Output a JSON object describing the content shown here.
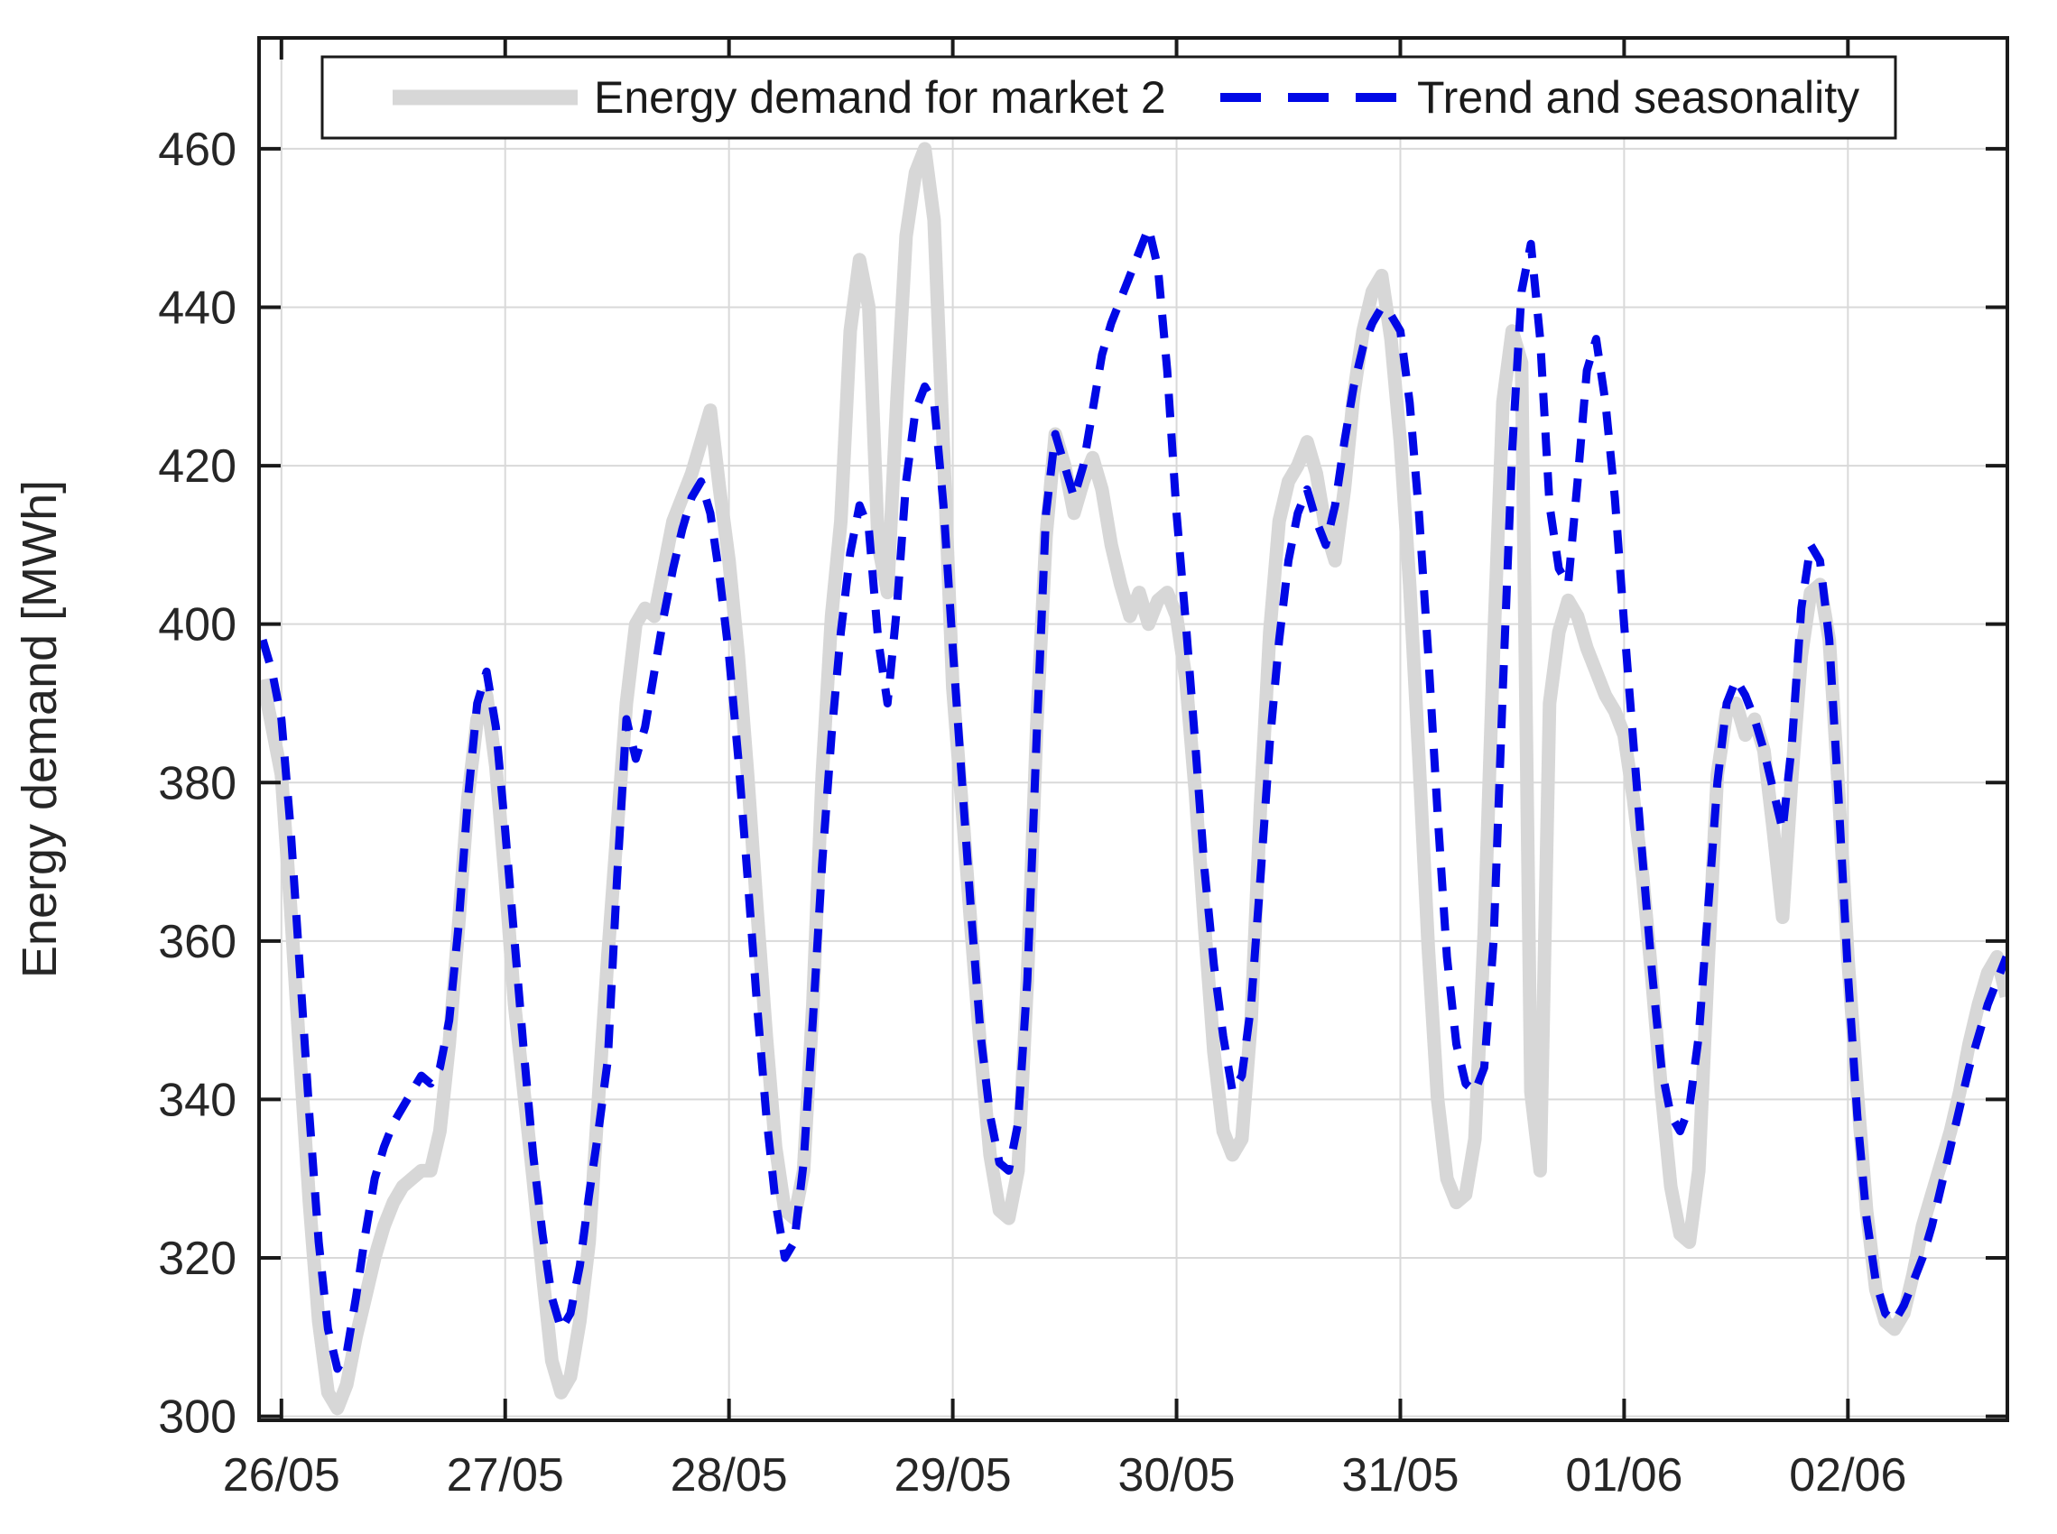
{
  "figure": {
    "background": "#ffffff"
  },
  "axes": {
    "ylabel": "Energy demand [MWh]",
    "xlabel": "",
    "frame_color": "#1a1a1a",
    "grid_color": "#d9d9d9",
    "tick_label_color": "#262626"
  },
  "legend": {
    "entries": [
      {
        "label": "Energy demand for market 2",
        "color": "#d7d7d7",
        "style": "solid"
      },
      {
        "label": "Trend and seasonality",
        "color": "#0008e6",
        "style": "dashed"
      }
    ]
  },
  "chart_data": {
    "type": "line",
    "title": "",
    "xlabel": "",
    "ylabel": "Energy demand [MWh]",
    "grid": true,
    "legend_position": "top-inside",
    "x_unit": "hours since 26/05 00:00",
    "x_start_hour": -2,
    "x_step_hours": 1,
    "xlim_hours": [
      -2.4,
      185.1
    ],
    "ylim": [
      299.5,
      474
    ],
    "y_ticks": [
      300,
      320,
      340,
      360,
      380,
      400,
      420,
      440,
      460
    ],
    "x_ticks": [
      {
        "hour": 0,
        "label": "26/05"
      },
      {
        "hour": 24,
        "label": "27/05"
      },
      {
        "hour": 48,
        "label": "28/05"
      },
      {
        "hour": 72,
        "label": "29/05"
      },
      {
        "hour": 96,
        "label": "30/05"
      },
      {
        "hour": 120,
        "label": "31/05"
      },
      {
        "hour": 144,
        "label": "01/06"
      },
      {
        "hour": 168,
        "label": "02/06"
      }
    ],
    "series": [
      {
        "name": "Energy demand for market 2",
        "color": "#d7d7d7",
        "line_width": 15,
        "dash": null,
        "values": [
          393,
          387,
          381,
          364,
          345,
          327,
          312,
          303,
          301,
          304,
          310,
          315,
          320,
          324,
          327,
          329,
          330,
          331,
          331,
          336,
          347,
          362,
          378,
          388,
          391,
          382,
          368,
          352,
          341,
          330,
          318,
          307,
          303,
          305,
          312,
          322,
          340,
          358,
          374,
          390,
          400,
          402,
          401,
          407,
          413,
          416,
          419,
          423,
          427,
          417,
          408,
          396,
          381,
          364,
          348,
          334,
          326,
          325,
          331,
          352,
          381,
          401,
          413,
          437,
          446,
          440,
          410,
          404,
          428,
          449,
          457,
          460,
          451,
          422,
          392,
          377,
          361,
          346,
          333,
          326,
          325,
          331,
          355,
          387,
          411,
          424,
          420,
          414,
          418,
          421,
          417,
          410,
          405,
          401,
          404,
          400,
          403,
          404,
          401,
          393,
          379,
          362,
          346,
          336,
          333,
          335,
          350,
          377,
          399,
          413,
          418,
          420,
          423,
          419,
          412,
          408,
          417,
          429,
          437,
          442,
          444,
          436,
          423,
          405,
          383,
          359,
          340,
          330,
          327,
          328,
          335,
          361,
          397,
          428,
          437,
          433,
          341,
          331,
          390,
          399,
          403,
          401,
          397,
          394,
          391,
          389,
          386,
          378,
          368,
          355,
          341,
          329,
          323,
          322,
          331,
          357,
          381,
          389,
          390,
          386,
          388,
          384,
          374,
          363,
          381,
          396,
          404,
          405,
          398,
          379,
          358,
          341,
          326,
          316,
          312,
          311,
          313,
          318,
          324,
          328,
          332,
          336,
          341,
          347,
          352,
          356,
          358,
          353
        ]
      },
      {
        "name": "Trend and seasonality",
        "color": "#0008e6",
        "line_width": 9,
        "dash": [
          26,
          18
        ],
        "values": [
          398,
          394,
          388,
          374,
          356,
          338,
          322,
          311,
          306,
          308,
          315,
          323,
          330,
          334,
          337,
          339,
          341,
          343,
          342,
          344,
          350,
          362,
          378,
          390,
          394,
          387,
          374,
          360,
          346,
          333,
          323,
          315,
          311,
          313,
          319,
          328,
          336,
          345,
          368,
          388,
          383,
          387,
          394,
          401,
          407,
          412,
          416,
          418,
          414,
          406,
          396,
          383,
          368,
          352,
          338,
          327,
          320,
          322,
          332,
          350,
          370,
          386,
          399,
          409,
          415,
          412,
          398,
          390,
          402,
          418,
          427,
          430,
          428,
          415,
          397,
          380,
          363,
          348,
          338,
          332,
          331,
          337,
          355,
          386,
          414,
          424,
          420,
          416,
          420,
          427,
          434,
          438,
          441,
          444,
          447,
          450,
          445,
          432,
          414,
          400,
          385,
          369,
          357,
          348,
          341,
          343,
          352,
          368,
          385,
          398,
          408,
          414,
          417,
          413,
          410,
          415,
          423,
          430,
          435,
          438,
          440,
          439,
          437,
          428,
          414,
          396,
          376,
          358,
          347,
          342,
          341,
          344,
          360,
          392,
          422,
          442,
          448,
          436,
          415,
          407,
          405,
          418,
          432,
          436,
          428,
          416,
          400,
          385,
          370,
          356,
          344,
          338,
          336,
          339,
          348,
          364,
          380,
          390,
          393,
          391,
          388,
          384,
          379,
          374,
          385,
          402,
          410,
          408,
          398,
          378,
          356,
          338,
          325,
          317,
          313,
          312,
          314,
          317,
          320,
          324,
          329,
          334,
          339,
          344,
          348,
          352,
          355,
          358
        ]
      }
    ]
  }
}
